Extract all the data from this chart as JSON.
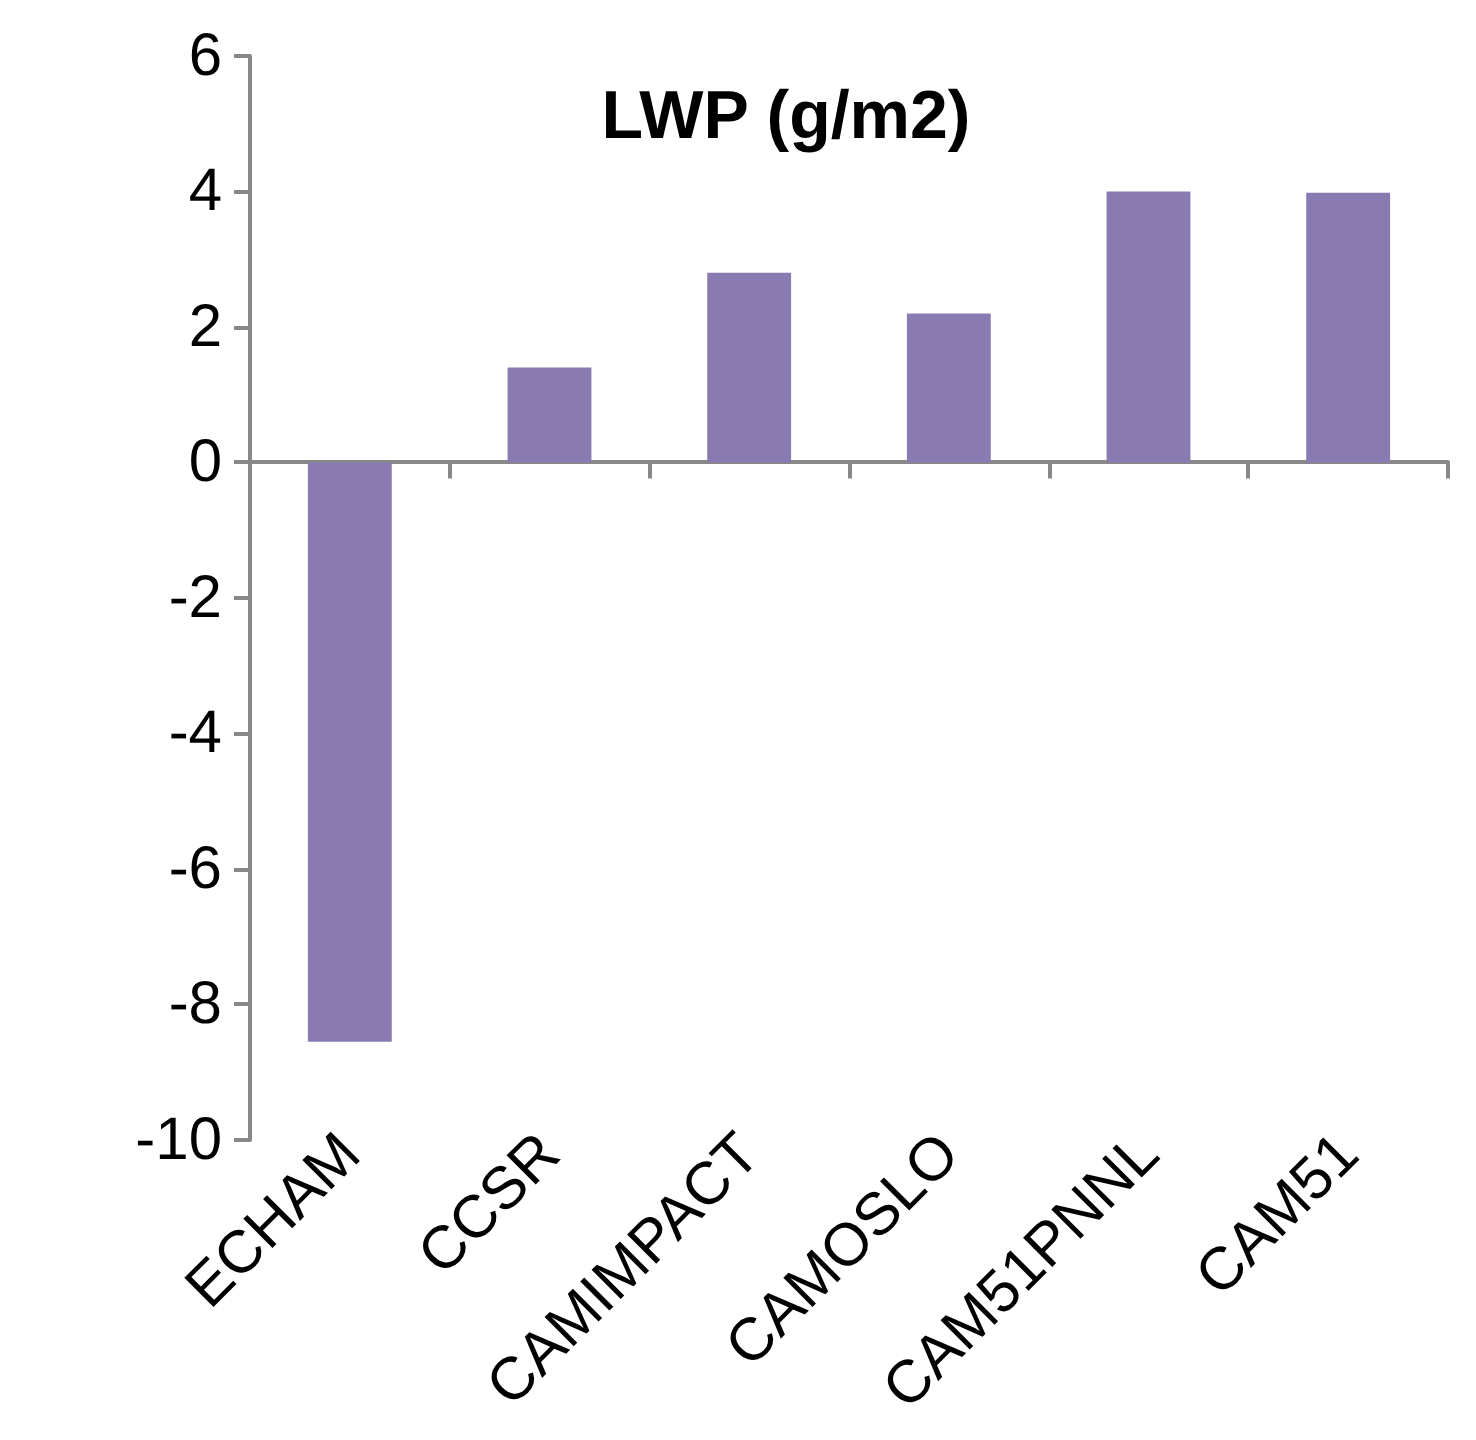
{
  "chart_data": {
    "type": "bar",
    "title": "LWP (g/m2)",
    "categories": [
      "ECHAM",
      "CCSR",
      "CAMIMPACT",
      "CAMOSLO",
      "CAM51PNNL",
      "CAM51"
    ],
    "values": [
      -8.55,
      1.4,
      2.8,
      2.2,
      4.0,
      3.98
    ],
    "color": "#8a7ab2",
    "ylim": [
      -10,
      6
    ],
    "yticks": [
      -10,
      -8,
      -6,
      -4,
      -2,
      0,
      2,
      4,
      6
    ]
  }
}
